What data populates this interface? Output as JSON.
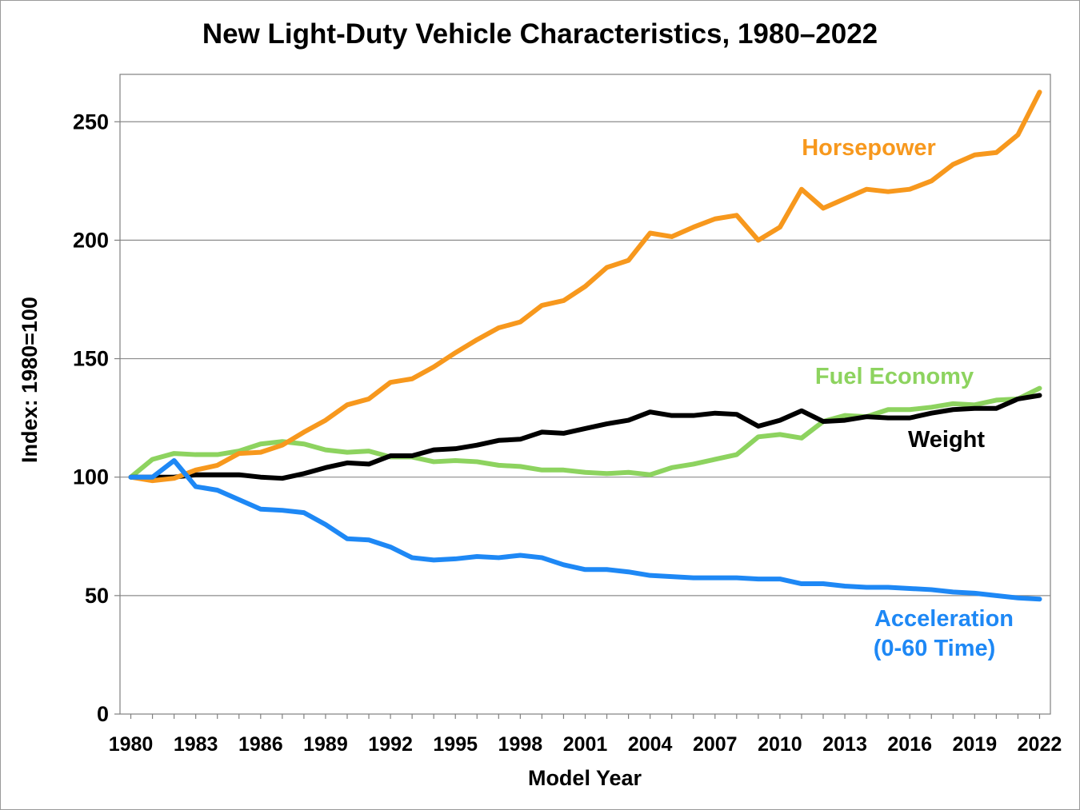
{
  "chart_data": {
    "type": "line",
    "title": "New Light-Duty Vehicle Characteristics, 1980–2022",
    "xlabel": "Model Year",
    "ylabel": "Index: 1980=100",
    "ylim": [
      0,
      270
    ],
    "yticks": [
      0,
      50,
      100,
      150,
      200,
      250
    ],
    "xlim": [
      1979.5,
      2022.5
    ],
    "xticks": [
      1980,
      1983,
      1986,
      1989,
      1992,
      1995,
      1998,
      2001,
      2004,
      2007,
      2010,
      2013,
      2016,
      2019,
      2022
    ],
    "grid": "horizontal",
    "x": [
      1980,
      1981,
      1982,
      1983,
      1984,
      1985,
      1986,
      1987,
      1988,
      1989,
      1990,
      1991,
      1992,
      1993,
      1994,
      1995,
      1996,
      1997,
      1998,
      1999,
      2000,
      2001,
      2002,
      2003,
      2004,
      2005,
      2006,
      2007,
      2008,
      2009,
      2010,
      2011,
      2012,
      2013,
      2014,
      2015,
      2016,
      2017,
      2018,
      2019,
      2020,
      2021,
      2022
    ],
    "series": [
      {
        "name": "Horsepower",
        "color": "#F7981D",
        "values": [
          100,
          98.5,
          99.5,
          103,
          105,
          110,
          110.5,
          113.5,
          119,
          124,
          130.5,
          133,
          140,
          141.5,
          146.5,
          152.5,
          158,
          163,
          165.5,
          172.5,
          174.5,
          180.5,
          188.5,
          191.5,
          203,
          201.5,
          205.5,
          209,
          210.5,
          200,
          205.5,
          221.5,
          213.5,
          217.5,
          221.5,
          220.5,
          221.5,
          225,
          232,
          236,
          237,
          244.5,
          262.5
        ]
      },
      {
        "name": "Fuel Economy",
        "color": "#8DD35F",
        "values": [
          100,
          107.5,
          110,
          109.5,
          109.5,
          111,
          114,
          115,
          114,
          111.5,
          110.5,
          111,
          108.5,
          108.5,
          106.5,
          107,
          106.5,
          105,
          104.5,
          103,
          103,
          102,
          101.5,
          102,
          101,
          104,
          105.5,
          107.5,
          109.5,
          117,
          118,
          116.5,
          123.5,
          126,
          125.5,
          128.5,
          128.5,
          129.5,
          131,
          130.5,
          132.5,
          133,
          137.5
        ]
      },
      {
        "name": "Weight",
        "color": "#000000",
        "values": [
          100,
          100,
          100,
          101,
          101,
          101,
          100,
          99.5,
          101.5,
          104,
          106,
          105.5,
          109,
          109,
          111.5,
          112,
          113.5,
          115.5,
          116,
          119,
          118.5,
          120.5,
          122.5,
          124,
          127.5,
          126,
          126,
          127,
          126.5,
          121.5,
          124,
          128,
          123.5,
          124,
          125.5,
          125,
          125,
          127,
          128.5,
          129,
          129,
          133,
          134.5
        ]
      },
      {
        "name": "Acceleration (0-60 Time)",
        "color": "#1E88F5",
        "values": [
          100,
          100,
          107,
          96,
          94.5,
          90.5,
          86.5,
          86,
          85,
          80,
          74,
          73.5,
          70.5,
          66,
          65,
          65.5,
          66.5,
          66,
          67,
          66,
          63,
          61,
          61,
          60,
          58.5,
          58,
          57.5,
          57.5,
          57.5,
          57,
          57,
          55,
          55,
          54,
          53.5,
          53.5,
          53,
          52.5,
          51.5,
          51,
          50,
          49,
          48.5
        ]
      }
    ],
    "labels": {
      "horsepower": "Horsepower",
      "fuel_economy": "Fuel Economy",
      "weight": "Weight",
      "acceleration_line1": "Acceleration",
      "acceleration_line2": "(0-60 Time)"
    }
  }
}
